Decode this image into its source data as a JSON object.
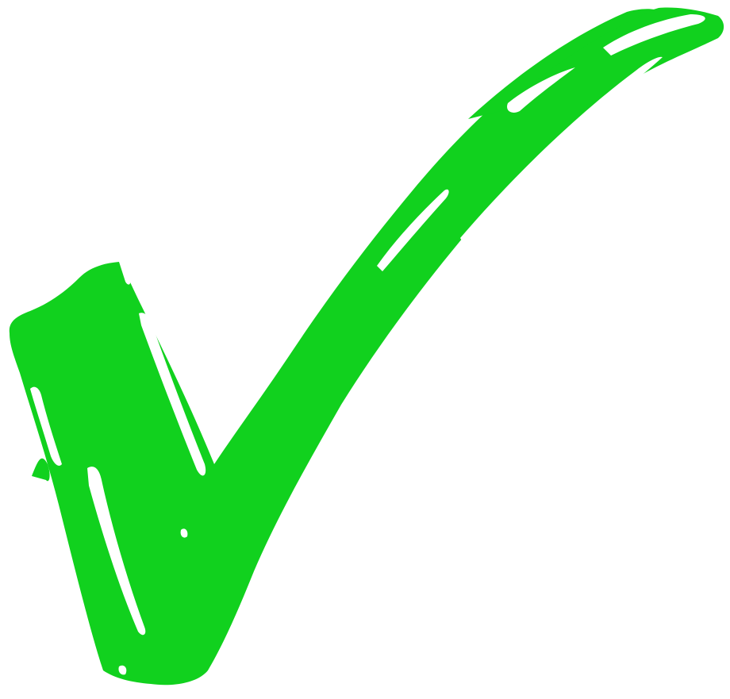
{
  "image": {
    "icon": "check-mark-icon",
    "colors": {
      "stroke": "#11d11e",
      "background": "#ffffff"
    }
  }
}
